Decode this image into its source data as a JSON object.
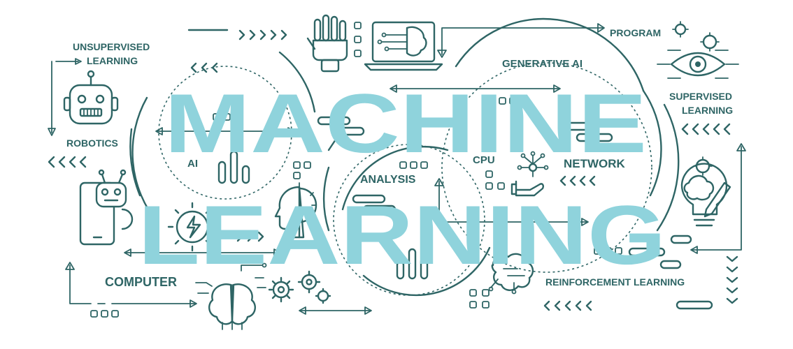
{
  "headline": {
    "line1": "MACHINE",
    "line2": "LEARNING"
  },
  "labels": {
    "unsupervised_line1": "UNSUPERVISED",
    "unsupervised_line2": "LEARNING",
    "program": "PROGRAM",
    "generative_ai": "GENERATIVE AI",
    "supervised_line1": "SUPERVISED",
    "supervised_line2": "LEARNING",
    "robotics": "ROBOTICS",
    "ai": "AI",
    "cpu": "CPU",
    "network": "NETWORK",
    "analysis": "ANALYSIS",
    "computer": "COMPUTER",
    "reinforcement_learning": "REINFORCEMENT LEARNING"
  },
  "colors": {
    "line": "#2e6565",
    "headline": "#8fd3dc",
    "background": "#ffffff"
  },
  "icons": [
    "robot-head-icon",
    "robot-phone-icon",
    "robotic-hand-icon",
    "laptop-brain-icon",
    "eye-gears-icon",
    "lightbulb-brain-icon",
    "brain-icon",
    "circuit-brain-icon",
    "hand-network-icon",
    "head-gear-icon",
    "gear-lightning-icon",
    "gears-icon"
  ]
}
